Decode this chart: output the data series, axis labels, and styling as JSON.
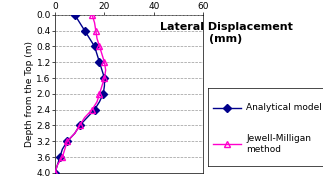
{
  "title": "Lateral Displacement\n(mm)",
  "ylabel": "Depth from the Top (m)",
  "xlim": [
    0,
    60
  ],
  "ylim": [
    4,
    0
  ],
  "xticks": [
    0,
    20,
    40,
    60
  ],
  "yticks": [
    0,
    0.4,
    0.8,
    1.2,
    1.6,
    2.0,
    2.4,
    2.8,
    3.2,
    3.6,
    4.0
  ],
  "analytical_depth": [
    0,
    0.2,
    0.4,
    0.6,
    0.8,
    1.0,
    1.2,
    1.4,
    1.6,
    1.8,
    2.0,
    2.2,
    2.4,
    2.6,
    2.8,
    3.0,
    3.2,
    3.4,
    3.6,
    3.8,
    4.0
  ],
  "analytical_disp": [
    8,
    10,
    12,
    14,
    16,
    17,
    18,
    19,
    20,
    20,
    19.5,
    18,
    16,
    13,
    10,
    8,
    5,
    3,
    2,
    1,
    0
  ],
  "jewell_depth": [
    0,
    0.2,
    0.4,
    0.6,
    0.8,
    1.0,
    1.2,
    1.4,
    1.6,
    1.8,
    2.0,
    2.2,
    2.4,
    2.6,
    2.8,
    3.0,
    3.2,
    3.4,
    3.6,
    3.8,
    4.0
  ],
  "jewell_disp": [
    15,
    16,
    16.5,
    17,
    18,
    19,
    20,
    20.5,
    20,
    19,
    18,
    17,
    15,
    12,
    10,
    8,
    5,
    4,
    3,
    1,
    0
  ],
  "analytical_color": "#00008B",
  "jewell_color": "#FF00CC",
  "analytical_marker": "D",
  "jewell_marker": "^",
  "analytical_label": "Analytical model",
  "jewell_label": "Jewell-Milligan\nmethod",
  "marker_every": 2,
  "bg_color": "#ffffff",
  "grid_color": "#999999",
  "legend_fontsize": 6.5,
  "axis_fontsize": 6.5,
  "title_fontsize": 8
}
